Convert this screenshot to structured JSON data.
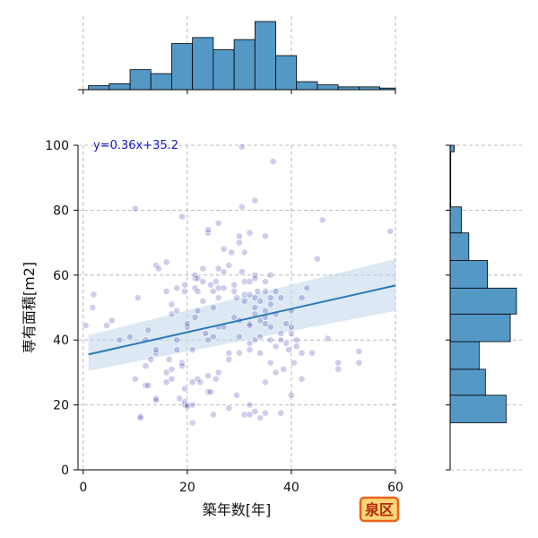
{
  "chart_data": {
    "type": "scatter",
    "title": "",
    "xlabel": "築年数[年]",
    "ylabel": "専有面積[m2]",
    "xlim": [
      -1,
      60
    ],
    "ylim": [
      0,
      100
    ],
    "xticks": [
      0,
      20,
      40,
      60
    ],
    "yticks": [
      0,
      20,
      40,
      60,
      80,
      100
    ],
    "grid": true,
    "regression": {
      "label": "y=0.36x+35.2",
      "slope": 0.36,
      "intercept": 35.2,
      "x_range": [
        1,
        60
      ],
      "ci_at_start": [
        30.5,
        41.5
      ],
      "ci_at_end": [
        49,
        65
      ]
    },
    "points": [
      [
        0.5,
        44.5
      ],
      [
        1.8,
        50
      ],
      [
        2,
        54
      ],
      [
        4.5,
        44.5
      ],
      [
        5.5,
        46
      ],
      [
        7,
        40
      ],
      [
        10,
        28
      ],
      [
        9,
        41
      ],
      [
        10.5,
        53
      ],
      [
        10,
        80.5
      ],
      [
        11,
        16.5
      ],
      [
        11,
        16
      ],
      [
        12,
        26
      ],
      [
        12.5,
        26
      ],
      [
        12,
        32
      ],
      [
        12,
        40
      ],
      [
        12.5,
        43
      ],
      [
        13,
        34
      ],
      [
        14,
        36
      ],
      [
        14,
        37
      ],
      [
        14,
        22
      ],
      [
        14,
        21.5
      ],
      [
        14,
        63
      ],
      [
        14.5,
        62
      ],
      [
        16,
        64
      ],
      [
        16,
        55
      ],
      [
        16,
        30
      ],
      [
        16,
        27
      ],
      [
        16.5,
        34
      ],
      [
        17,
        31
      ],
      [
        17,
        28
      ],
      [
        17,
        48
      ],
      [
        17,
        51
      ],
      [
        18,
        49
      ],
      [
        18,
        56
      ],
      [
        18.5,
        22
      ],
      [
        18,
        37
      ],
      [
        18,
        40
      ],
      [
        19,
        33
      ],
      [
        19,
        78
      ],
      [
        19,
        32
      ],
      [
        19.5,
        20
      ],
      [
        19.5,
        25
      ],
      [
        19.5,
        21
      ],
      [
        19.5,
        55
      ],
      [
        19.5,
        57
      ],
      [
        20,
        20
      ],
      [
        20,
        19.5
      ],
      [
        20,
        44
      ],
      [
        20,
        45
      ],
      [
        21,
        27
      ],
      [
        21,
        37
      ],
      [
        21,
        20
      ],
      [
        21,
        14.5
      ],
      [
        21.5,
        59
      ],
      [
        21.5,
        60
      ],
      [
        21.5,
        47
      ],
      [
        21.5,
        56
      ],
      [
        22,
        49
      ],
      [
        22,
        55
      ],
      [
        22,
        59
      ],
      [
        22,
        28
      ],
      [
        22.5,
        27
      ],
      [
        23,
        62
      ],
      [
        23,
        52
      ],
      [
        23,
        58
      ],
      [
        23.5,
        42
      ],
      [
        24,
        73
      ],
      [
        24,
        74
      ],
      [
        24,
        29
      ],
      [
        24,
        24
      ],
      [
        24,
        40
      ],
      [
        24.5,
        57
      ],
      [
        24.5,
        24
      ],
      [
        25,
        55
      ],
      [
        25,
        50
      ],
      [
        25,
        41
      ],
      [
        25,
        17
      ],
      [
        25.5,
        28
      ],
      [
        25.5,
        58
      ],
      [
        26,
        76
      ],
      [
        26,
        62
      ],
      [
        26,
        56
      ],
      [
        26,
        53
      ],
      [
        26,
        44
      ],
      [
        26,
        30
      ],
      [
        27,
        68
      ],
      [
        27,
        56
      ],
      [
        27,
        61
      ],
      [
        27,
        44
      ],
      [
        28,
        34
      ],
      [
        28,
        36
      ],
      [
        28,
        63
      ],
      [
        28,
        19
      ],
      [
        28.5,
        67
      ],
      [
        29,
        57
      ],
      [
        29,
        55
      ],
      [
        29,
        47
      ],
      [
        29.5,
        53
      ],
      [
        29.5,
        23
      ],
      [
        30,
        70
      ],
      [
        30,
        72
      ],
      [
        30,
        41
      ],
      [
        30,
        46
      ],
      [
        30,
        36
      ],
      [
        30.5,
        99.5
      ],
      [
        30.5,
        81
      ],
      [
        30.5,
        61
      ],
      [
        31,
        67
      ],
      [
        31,
        58
      ],
      [
        31,
        54
      ],
      [
        31,
        52
      ],
      [
        31,
        17
      ],
      [
        32,
        73
      ],
      [
        32,
        58
      ],
      [
        32,
        54
      ],
      [
        32,
        45
      ],
      [
        32,
        44.5
      ],
      [
        32,
        39
      ],
      [
        32,
        37
      ],
      [
        32,
        20
      ],
      [
        32,
        17
      ],
      [
        33,
        83
      ],
      [
        33,
        60
      ],
      [
        33,
        59
      ],
      [
        33,
        53
      ],
      [
        33,
        50
      ],
      [
        33,
        48
      ],
      [
        33,
        40
      ],
      [
        33,
        18
      ],
      [
        33.5,
        55
      ],
      [
        34,
        16
      ],
      [
        34,
        52
      ],
      [
        34,
        46
      ],
      [
        34,
        41
      ],
      [
        34,
        36
      ],
      [
        35,
        72
      ],
      [
        35,
        58
      ],
      [
        35,
        55
      ],
      [
        35,
        49
      ],
      [
        35,
        47
      ],
      [
        35,
        45
      ],
      [
        35,
        27
      ],
      [
        35,
        17.5
      ],
      [
        36,
        60
      ],
      [
        36,
        53
      ],
      [
        36,
        51
      ],
      [
        36,
        44
      ],
      [
        36,
        40
      ],
      [
        36,
        33
      ],
      [
        36.5,
        95
      ],
      [
        37,
        55
      ],
      [
        37,
        48
      ],
      [
        37,
        38
      ],
      [
        37,
        30
      ],
      [
        38,
        53
      ],
      [
        38,
        42
      ],
      [
        38,
        40
      ],
      [
        38,
        17.5
      ],
      [
        38.5,
        31
      ],
      [
        39,
        45
      ],
      [
        39,
        39
      ],
      [
        39.5,
        37
      ],
      [
        40,
        49
      ],
      [
        40,
        44
      ],
      [
        40,
        42
      ],
      [
        40,
        23
      ],
      [
        40.5,
        33
      ],
      [
        41,
        40
      ],
      [
        41,
        38
      ],
      [
        42,
        36
      ],
      [
        42,
        28
      ],
      [
        42,
        53
      ],
      [
        43,
        56
      ],
      [
        44,
        36
      ],
      [
        45,
        65
      ],
      [
        46,
        77
      ],
      [
        47,
        40.5
      ],
      [
        49,
        33
      ],
      [
        49,
        31
      ],
      [
        53,
        36.5
      ],
      [
        53,
        33
      ],
      [
        59,
        73.5
      ]
    ],
    "x_marginal_histogram": {
      "bin_edges": [
        1,
        5,
        9,
        13,
        17,
        21,
        25,
        29,
        33,
        37,
        41,
        45,
        49,
        53,
        57,
        60
      ],
      "counts": [
        1,
        1.5,
        5,
        4,
        11.5,
        13,
        10,
        12.5,
        17,
        8.5,
        2,
        1.2,
        0.7,
        0.7,
        0.4
      ]
    },
    "y_marginal_histogram": {
      "bin_edges": [
        14.5,
        23,
        31,
        39.5,
        48,
        56,
        64.5,
        73,
        81,
        89.5,
        98,
        100
      ],
      "counts": [
        27,
        17,
        14,
        29,
        32,
        18,
        9,
        5.5,
        0.3,
        0.3,
        2
      ]
    },
    "colors": {
      "point": "#2222aa",
      "regression_line": "#2a7ab8",
      "ci_band": "#bfd6ea",
      "hist_fill": "#5498c6",
      "grid": "#aaaaaa",
      "regression_label": "#1515c8",
      "badge_fill": "#fbd47b",
      "badge_border": "#e8631a",
      "badge_text": "#b32700"
    }
  },
  "badge": {
    "label": "泉区"
  }
}
